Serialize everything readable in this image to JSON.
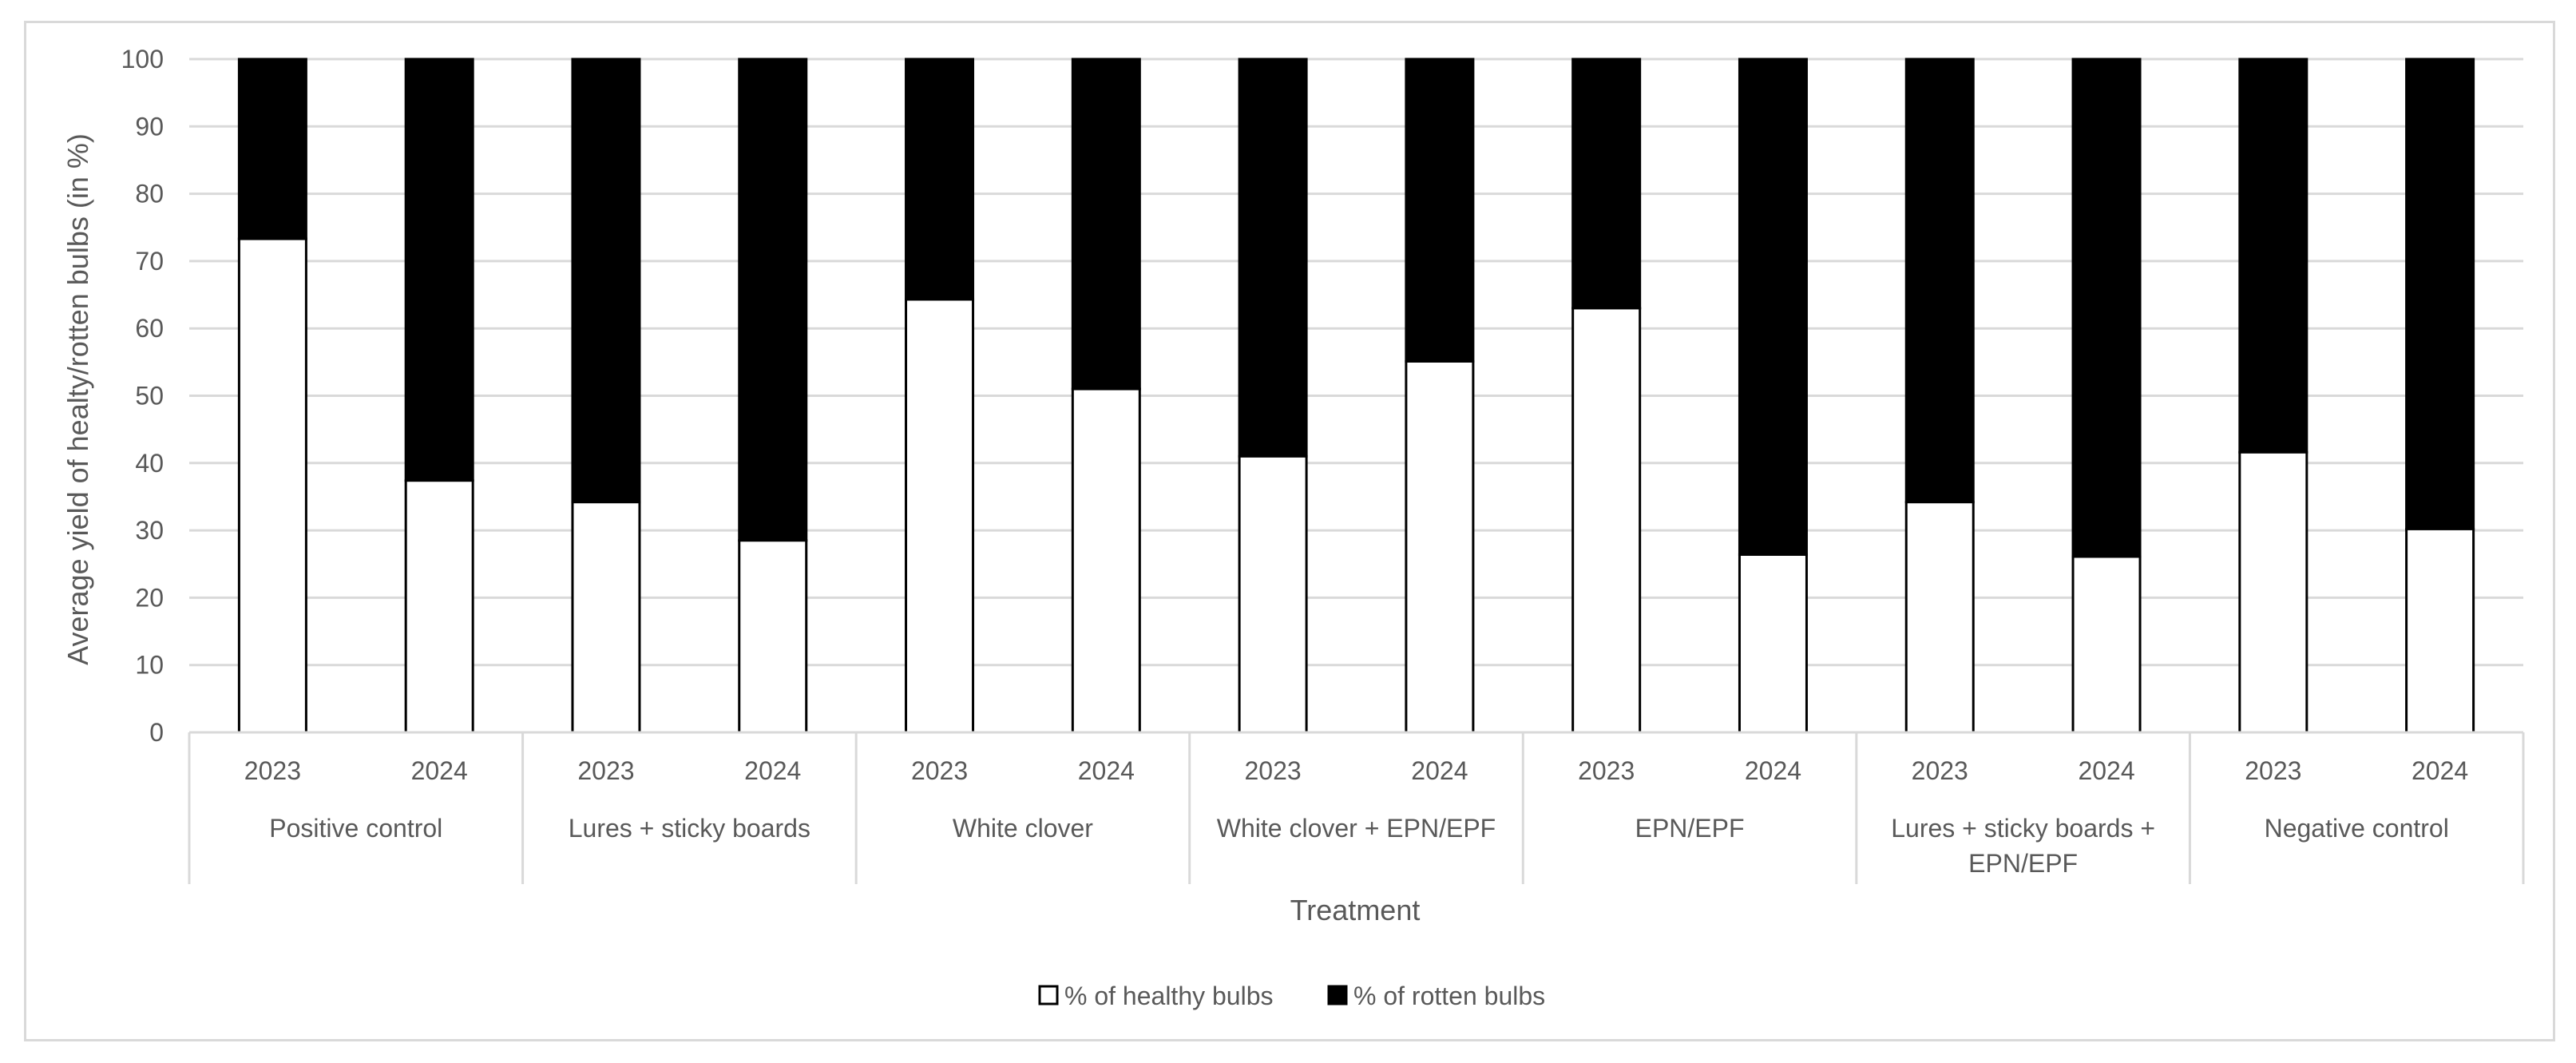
{
  "chart_data": {
    "type": "bar",
    "stacked": true,
    "title": "",
    "xlabel": "Treatment",
    "ylabel": "Average yield of healty/rotten bulbs (in %)",
    "ylim": [
      0,
      100
    ],
    "yticks": [
      0,
      10,
      20,
      30,
      40,
      50,
      60,
      70,
      80,
      90,
      100
    ],
    "grid": true,
    "legend_position": "bottom",
    "groups": [
      "Positive control",
      "Lures + sticky boards",
      "White clover",
      "White clover + EPN/EPF",
      "EPN/EPF",
      "Lures + sticky boards + EPN/EPF",
      "Negative control"
    ],
    "group_label_lines": [
      [
        "Positive control"
      ],
      [
        "Lures + sticky boards"
      ],
      [
        "White clover"
      ],
      [
        "White clover + EPN/EPF"
      ],
      [
        "EPN/EPF"
      ],
      [
        "Lures + sticky boards +",
        "EPN/EPF"
      ],
      [
        "Negative control"
      ]
    ],
    "subcategories": [
      "2023",
      "2024"
    ],
    "series": [
      {
        "name": "% of healthy bulbs",
        "color": "#ffffff",
        "values": [
          73.3,
          37.4,
          34.2,
          28.5,
          64.3,
          51.0,
          41.0,
          55.1,
          63.0,
          26.4,
          34.2,
          26.1,
          41.6,
          30.2
        ]
      },
      {
        "name": "% of rotten bulbs",
        "color": "#000000",
        "values": [
          26.7,
          62.6,
          65.8,
          71.5,
          35.7,
          49.0,
          59.0,
          44.9,
          37.0,
          73.6,
          65.8,
          73.9,
          58.4,
          69.8
        ]
      }
    ]
  }
}
